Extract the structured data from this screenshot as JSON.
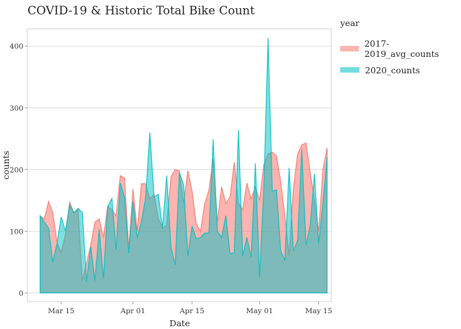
{
  "chart_data": {
    "type": "area",
    "title": "COVID-19 & Historic Total Bike Count",
    "xlabel": "Date",
    "ylabel": "counts",
    "x_start": "2020-03-10",
    "x_end": "2020-05-15",
    "xlim": [
      "2020-03-07",
      "2020-05-18"
    ],
    "ylim": [
      -14,
      428
    ],
    "yticks": [
      0,
      100,
      200,
      300,
      400
    ],
    "xticks": [
      {
        "date": "2020-03-15",
        "label": "Mar 15"
      },
      {
        "date": "2020-04-01",
        "label": "Apr 01"
      },
      {
        "date": "2020-04-15",
        "label": "Apr 15"
      },
      {
        "date": "2020-05-01",
        "label": "May 01"
      },
      {
        "date": "2020-05-15",
        "label": "May 15"
      }
    ],
    "grid": true,
    "legend": {
      "title": "year",
      "position": "right"
    },
    "series": [
      {
        "name": "2017-2019_avg_counts",
        "color": "#f8766d",
        "values": [
          125,
          120,
          148,
          130,
          82,
          65,
          95,
          147,
          130,
          135,
          20,
          48,
          78,
          115,
          120,
          90,
          140,
          135,
          125,
          190,
          186,
          72,
          168,
          100,
          177,
          177,
          152,
          160,
          120,
          105,
          110,
          188,
          200,
          198,
          145,
          198,
          165,
          112,
          100,
          145,
          167,
          217,
          115,
          172,
          145,
          155,
          212,
          145,
          135,
          178,
          152,
          172,
          150,
          208,
          225,
          228,
          222,
          180,
          125,
          60,
          168,
          225,
          240,
          243,
          195,
          150,
          100,
          200,
          235
        ]
      },
      {
        "name": "2020_counts",
        "color": "#00bfc4",
        "values": [
          125,
          115,
          105,
          50,
          80,
          123,
          100,
          143,
          130,
          137,
          130,
          18,
          75,
          20,
          103,
          23,
          140,
          153,
          70,
          178,
          155,
          65,
          148,
          90,
          115,
          155,
          260,
          155,
          160,
          105,
          190,
          75,
          45,
          195,
          175,
          60,
          108,
          88,
          90,
          97,
          97,
          249,
          100,
          90,
          125,
          64,
          65,
          264,
          60,
          90,
          58,
          210,
          25,
          170,
          413,
          165,
          167,
          68,
          53,
          203,
          68,
          85,
          233,
          77,
          110,
          193,
          80,
          145,
          220
        ]
      }
    ]
  }
}
